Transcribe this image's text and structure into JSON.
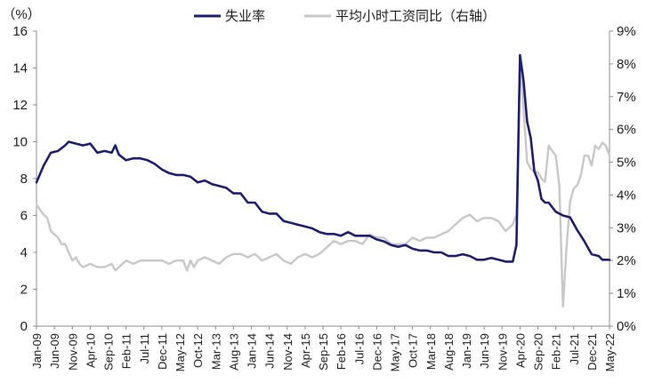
{
  "chart_data": {
    "type": "line",
    "left_axis_unit_label": "（%）",
    "legend_position": "top",
    "grid": false,
    "x_tick_labels": [
      "Jan-09",
      "Jun-09",
      "Nov-09",
      "Apr-10",
      "Sep-10",
      "Feb-11",
      "Jul-11",
      "Dec-11",
      "May-12",
      "Oct-12",
      "Mar-13",
      "Aug-13",
      "Jan-14",
      "Jun-14",
      "Nov-14",
      "Apr-15",
      "Sep-15",
      "Feb-16",
      "Jul-16",
      "Dec-16",
      "May-17",
      "Oct-17",
      "Mar-18",
      "Aug-18",
      "Jan-19",
      "Jun-19",
      "Nov-19",
      "Apr-20",
      "Sep-20",
      "Feb-21",
      "Jul-21",
      "Dec-21",
      "May-22"
    ],
    "x_range": [
      "2009-01",
      "2022-05"
    ],
    "y_left": {
      "range": [
        0,
        16
      ],
      "ticks": [
        "0",
        "2",
        "4",
        "6",
        "8",
        "10",
        "12",
        "14",
        "16"
      ]
    },
    "y_right": {
      "range": [
        0,
        9
      ],
      "ticks": [
        "0%",
        "1%",
        "2%",
        "3%",
        "4%",
        "5%",
        "6%",
        "7%",
        "8%",
        "9%"
      ]
    },
    "series": [
      {
        "name": "失业率",
        "axis": "left",
        "color": "#1f1f6e",
        "points": [
          [
            "2009-01",
            7.8
          ],
          [
            "2009-03",
            8.7
          ],
          [
            "2009-05",
            9.4
          ],
          [
            "2009-07",
            9.5
          ],
          [
            "2009-09",
            9.8
          ],
          [
            "2009-10",
            10.0
          ],
          [
            "2009-12",
            9.9
          ],
          [
            "2010-02",
            9.8
          ],
          [
            "2010-04",
            9.9
          ],
          [
            "2010-06",
            9.4
          ],
          [
            "2010-08",
            9.5
          ],
          [
            "2010-10",
            9.4
          ],
          [
            "2010-11",
            9.8
          ],
          [
            "2010-12",
            9.3
          ],
          [
            "2011-02",
            9.0
          ],
          [
            "2011-04",
            9.1
          ],
          [
            "2011-06",
            9.1
          ],
          [
            "2011-08",
            9.0
          ],
          [
            "2011-10",
            8.8
          ],
          [
            "2011-12",
            8.5
          ],
          [
            "2012-02",
            8.3
          ],
          [
            "2012-04",
            8.2
          ],
          [
            "2012-06",
            8.2
          ],
          [
            "2012-08",
            8.1
          ],
          [
            "2012-10",
            7.8
          ],
          [
            "2012-12",
            7.9
          ],
          [
            "2013-02",
            7.7
          ],
          [
            "2013-04",
            7.6
          ],
          [
            "2013-06",
            7.5
          ],
          [
            "2013-08",
            7.2
          ],
          [
            "2013-10",
            7.2
          ],
          [
            "2013-12",
            6.7
          ],
          [
            "2014-02",
            6.7
          ],
          [
            "2014-04",
            6.2
          ],
          [
            "2014-06",
            6.1
          ],
          [
            "2014-08",
            6.1
          ],
          [
            "2014-10",
            5.7
          ],
          [
            "2014-12",
            5.6
          ],
          [
            "2015-02",
            5.5
          ],
          [
            "2015-04",
            5.4
          ],
          [
            "2015-06",
            5.3
          ],
          [
            "2015-08",
            5.1
          ],
          [
            "2015-10",
            5.0
          ],
          [
            "2015-12",
            5.0
          ],
          [
            "2016-02",
            4.9
          ],
          [
            "2016-04",
            5.1
          ],
          [
            "2016-06",
            4.9
          ],
          [
            "2016-08",
            4.9
          ],
          [
            "2016-10",
            4.9
          ],
          [
            "2016-12",
            4.7
          ],
          [
            "2017-02",
            4.6
          ],
          [
            "2017-04",
            4.4
          ],
          [
            "2017-06",
            4.3
          ],
          [
            "2017-08",
            4.4
          ],
          [
            "2017-10",
            4.2
          ],
          [
            "2017-12",
            4.1
          ],
          [
            "2018-02",
            4.1
          ],
          [
            "2018-04",
            4.0
          ],
          [
            "2018-06",
            4.0
          ],
          [
            "2018-08",
            3.8
          ],
          [
            "2018-10",
            3.8
          ],
          [
            "2018-12",
            3.9
          ],
          [
            "2019-02",
            3.8
          ],
          [
            "2019-04",
            3.6
          ],
          [
            "2019-06",
            3.6
          ],
          [
            "2019-08",
            3.7
          ],
          [
            "2019-10",
            3.6
          ],
          [
            "2019-12",
            3.5
          ],
          [
            "2020-02",
            3.5
          ],
          [
            "2020-03",
            4.4
          ],
          [
            "2020-04",
            14.7
          ],
          [
            "2020-05",
            13.3
          ],
          [
            "2020-06",
            11.1
          ],
          [
            "2020-07",
            10.2
          ],
          [
            "2020-08",
            8.4
          ],
          [
            "2020-09",
            7.9
          ],
          [
            "2020-10",
            6.9
          ],
          [
            "2020-11",
            6.7
          ],
          [
            "2020-12",
            6.7
          ],
          [
            "2021-02",
            6.2
          ],
          [
            "2021-04",
            6.0
          ],
          [
            "2021-06",
            5.9
          ],
          [
            "2021-08",
            5.2
          ],
          [
            "2021-10",
            4.6
          ],
          [
            "2021-12",
            3.9
          ],
          [
            "2022-02",
            3.8
          ],
          [
            "2022-03",
            3.6
          ],
          [
            "2022-05",
            3.6
          ]
        ]
      },
      {
        "name": "平均小时工资同比（右轴）",
        "axis": "right",
        "color": "#c8c8c8",
        "points": [
          [
            "2009-01",
            3.7
          ],
          [
            "2009-03",
            3.4
          ],
          [
            "2009-04",
            3.3
          ],
          [
            "2009-05",
            2.9
          ],
          [
            "2009-07",
            2.7
          ],
          [
            "2009-08",
            2.5
          ],
          [
            "2009-09",
            2.5
          ],
          [
            "2009-11",
            2.0
          ],
          [
            "2009-12",
            2.1
          ],
          [
            "2010-01",
            1.9
          ],
          [
            "2010-02",
            1.8
          ],
          [
            "2010-04",
            1.9
          ],
          [
            "2010-06",
            1.8
          ],
          [
            "2010-08",
            1.8
          ],
          [
            "2010-10",
            1.9
          ],
          [
            "2010-11",
            1.7
          ],
          [
            "2010-12",
            1.8
          ],
          [
            "2011-02",
            2.0
          ],
          [
            "2011-04",
            1.9
          ],
          [
            "2011-06",
            2.0
          ],
          [
            "2011-08",
            2.0
          ],
          [
            "2011-10",
            2.0
          ],
          [
            "2011-12",
            2.0
          ],
          [
            "2012-02",
            1.9
          ],
          [
            "2012-04",
            2.0
          ],
          [
            "2012-06",
            2.0
          ],
          [
            "2012-07",
            1.7
          ],
          [
            "2012-08",
            2.0
          ],
          [
            "2012-09",
            1.8
          ],
          [
            "2012-10",
            2.0
          ],
          [
            "2012-12",
            2.1
          ],
          [
            "2013-02",
            2.0
          ],
          [
            "2013-04",
            1.9
          ],
          [
            "2013-06",
            2.1
          ],
          [
            "2013-08",
            2.2
          ],
          [
            "2013-10",
            2.2
          ],
          [
            "2013-12",
            2.1
          ],
          [
            "2014-02",
            2.2
          ],
          [
            "2014-04",
            2.0
          ],
          [
            "2014-06",
            2.1
          ],
          [
            "2014-08",
            2.2
          ],
          [
            "2014-10",
            2.0
          ],
          [
            "2014-12",
            1.9
          ],
          [
            "2015-02",
            2.1
          ],
          [
            "2015-04",
            2.2
          ],
          [
            "2015-06",
            2.1
          ],
          [
            "2015-08",
            2.2
          ],
          [
            "2015-10",
            2.4
          ],
          [
            "2015-12",
            2.6
          ],
          [
            "2016-02",
            2.5
          ],
          [
            "2016-04",
            2.6
          ],
          [
            "2016-06",
            2.6
          ],
          [
            "2016-08",
            2.5
          ],
          [
            "2016-10",
            2.8
          ],
          [
            "2016-12",
            2.7
          ],
          [
            "2017-02",
            2.7
          ],
          [
            "2017-04",
            2.5
          ],
          [
            "2017-06",
            2.5
          ],
          [
            "2017-08",
            2.5
          ],
          [
            "2017-10",
            2.7
          ],
          [
            "2017-12",
            2.6
          ],
          [
            "2018-02",
            2.7
          ],
          [
            "2018-04",
            2.7
          ],
          [
            "2018-06",
            2.8
          ],
          [
            "2018-08",
            2.9
          ],
          [
            "2018-10",
            3.1
          ],
          [
            "2018-12",
            3.3
          ],
          [
            "2019-02",
            3.4
          ],
          [
            "2019-04",
            3.2
          ],
          [
            "2019-06",
            3.3
          ],
          [
            "2019-08",
            3.3
          ],
          [
            "2019-10",
            3.2
          ],
          [
            "2019-12",
            2.9
          ],
          [
            "2020-02",
            3.1
          ],
          [
            "2020-03",
            3.4
          ],
          [
            "2020-04",
            8.0
          ],
          [
            "2020-05",
            6.6
          ],
          [
            "2020-06",
            5.0
          ],
          [
            "2020-07",
            4.8
          ],
          [
            "2020-08",
            4.7
          ],
          [
            "2020-09",
            4.7
          ],
          [
            "2020-10",
            4.5
          ],
          [
            "2020-11",
            4.4
          ],
          [
            "2020-12",
            5.5
          ],
          [
            "2021-02",
            5.2
          ],
          [
            "2021-03",
            4.3
          ],
          [
            "2021-04",
            0.6
          ],
          [
            "2021-05",
            2.4
          ],
          [
            "2021-06",
            3.8
          ],
          [
            "2021-07",
            4.2
          ],
          [
            "2021-08",
            4.3
          ],
          [
            "2021-09",
            4.6
          ],
          [
            "2021-10",
            5.2
          ],
          [
            "2021-11",
            5.2
          ],
          [
            "2021-12",
            4.9
          ],
          [
            "2022-01",
            5.5
          ],
          [
            "2022-02",
            5.4
          ],
          [
            "2022-03",
            5.6
          ],
          [
            "2022-04",
            5.5
          ],
          [
            "2022-05",
            5.2
          ]
        ]
      }
    ]
  }
}
